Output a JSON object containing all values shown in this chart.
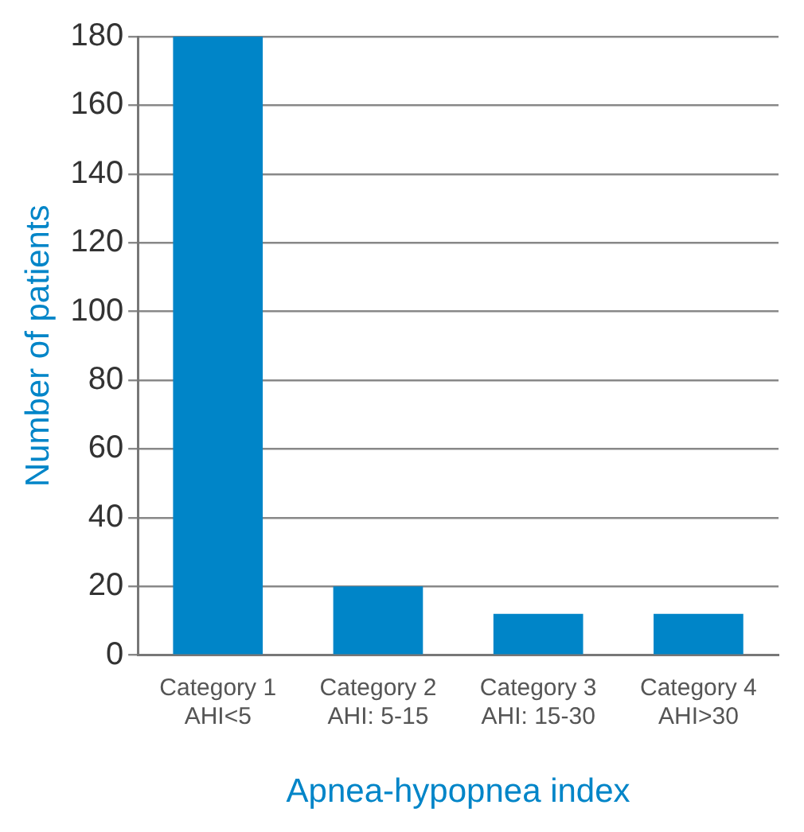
{
  "chart_data": {
    "type": "bar",
    "xlabel": "Apnea-hypopnea index",
    "ylabel": "Number of patients",
    "categories": [
      "Category 1\nAHI<5",
      "Category 2\nAHI: 5-15",
      "Category 3\nAHI: 15-30",
      "Category 4\nAHI>30"
    ],
    "values": [
      180,
      20,
      12,
      12
    ],
    "color": "#0085c8",
    "ylim": [
      0,
      180
    ],
    "yticks": [
      0,
      20,
      40,
      60,
      80,
      100,
      120,
      140,
      160,
      180
    ],
    "grid": "y"
  }
}
